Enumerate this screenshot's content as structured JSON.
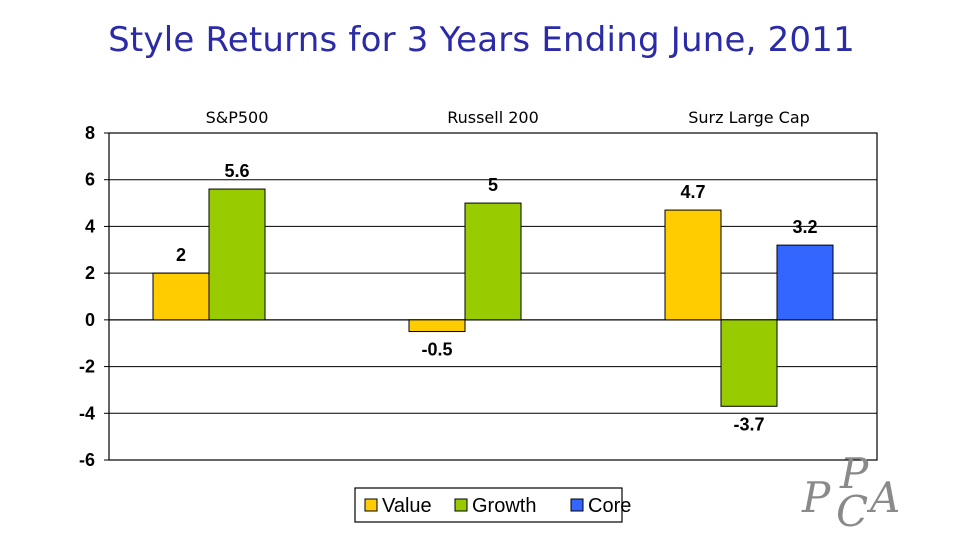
{
  "title": "Style Returns for 3 Years Ending June, 2011",
  "chart_data": {
    "type": "bar",
    "categories": [
      "S&P500",
      "Russell 200",
      "Surz Large Cap"
    ],
    "series": [
      {
        "name": "Value",
        "color": "#ffcc00",
        "values": [
          2,
          -0.5,
          4.7
        ]
      },
      {
        "name": "Growth",
        "color": "#99cc00",
        "values": [
          5.6,
          5,
          -3.7
        ]
      },
      {
        "name": "Core",
        "color": "#3366ff",
        "values": [
          null,
          null,
          3.2
        ]
      }
    ],
    "ylim": [
      -6,
      8
    ],
    "yticks": [
      8,
      6,
      4,
      2,
      0,
      -2,
      -4,
      -6
    ],
    "grid": true,
    "legend_position": "bottom"
  },
  "logo": {
    "letters": [
      "P",
      "P",
      "C",
      "A"
    ],
    "color": "#8a8a8a"
  }
}
